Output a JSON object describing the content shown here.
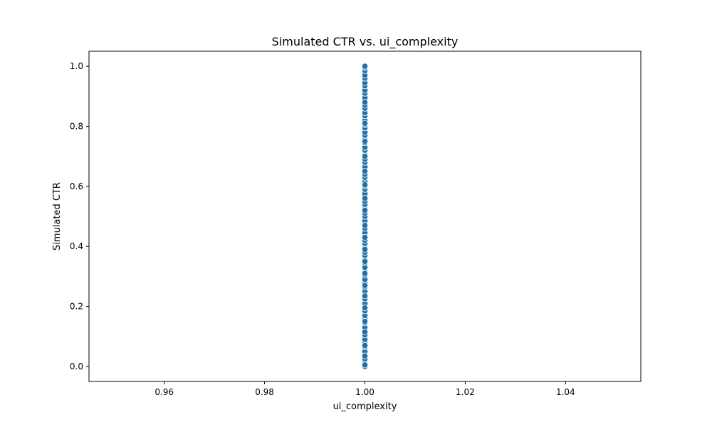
{
  "chart_data": {
    "type": "scatter",
    "title": "Simulated CTR vs. ui_complexity",
    "xlabel": "ui_complexity",
    "ylabel": "Simulated CTR",
    "xlim": [
      0.945,
      1.055
    ],
    "ylim": [
      -0.05,
      1.05
    ],
    "xticks": [
      "0.96",
      "0.98",
      "1.00",
      "1.02",
      "1.04"
    ],
    "yticks": [
      "0.0",
      "0.2",
      "0.4",
      "0.6",
      "0.8",
      "1.0"
    ],
    "grid": false,
    "marker_color": "#1f6fa8",
    "marker_edge_color": "#ffffff",
    "series": [
      {
        "x": [
          1.0,
          1.0,
          1.0,
          1.0,
          1.0,
          1.0,
          1.0,
          1.0,
          1.0,
          1.0,
          1.0,
          1.0,
          1.0,
          1.0,
          1.0,
          1.0,
          1.0,
          1.0,
          1.0,
          1.0,
          1.0,
          1.0,
          1.0,
          1.0,
          1.0,
          1.0,
          1.0,
          1.0,
          1.0,
          1.0,
          1.0,
          1.0,
          1.0,
          1.0,
          1.0,
          1.0,
          1.0,
          1.0,
          1.0,
          1.0,
          1.0,
          1.0,
          1.0,
          1.0,
          1.0,
          1.0,
          1.0,
          1.0,
          1.0,
          1.0,
          1.0,
          1.0,
          1.0,
          1.0,
          1.0,
          1.0,
          1.0,
          1.0,
          1.0,
          1.0,
          1.0,
          1.0,
          1.0,
          1.0,
          1.0,
          1.0,
          1.0,
          1.0,
          1.0,
          1.0,
          1.0,
          1.0,
          1.0,
          1.0,
          1.0,
          1.0,
          1.0,
          1.0,
          1.0,
          1.0,
          1.0,
          1.0,
          1.0,
          1.0,
          1.0,
          1.0,
          1.0,
          1.0,
          1.0,
          1.0,
          1.0,
          1.0,
          1.0,
          1.0,
          1.0,
          1.0,
          1.0,
          1.0,
          1.0,
          1.0
        ],
        "y": [
          0.0,
          0.01,
          0.025,
          0.04,
          0.05,
          0.065,
          0.08,
          0.09,
          0.105,
          0.12,
          0.13,
          0.145,
          0.16,
          0.17,
          0.185,
          0.2,
          0.21,
          0.225,
          0.24,
          0.25,
          0.265,
          0.28,
          0.29,
          0.305,
          0.315,
          0.33,
          0.345,
          0.355,
          0.37,
          0.38,
          0.395,
          0.41,
          0.42,
          0.435,
          0.445,
          0.46,
          0.475,
          0.485,
          0.5,
          0.51,
          0.525,
          0.54,
          0.55,
          0.565,
          0.575,
          0.59,
          0.6,
          0.615,
          0.63,
          0.64,
          0.655,
          0.665,
          0.68,
          0.69,
          0.705,
          0.72,
          0.73,
          0.745,
          0.755,
          0.77,
          0.78,
          0.795,
          0.805,
          0.82,
          0.835,
          0.845,
          0.86,
          0.87,
          0.885,
          0.895,
          0.91,
          0.92,
          0.935,
          0.945,
          0.96,
          0.97,
          0.985,
          0.995,
          1.0,
          0.005,
          0.035,
          0.07,
          0.115,
          0.15,
          0.195,
          0.235,
          0.27,
          0.31,
          0.35,
          0.39,
          0.43,
          0.47,
          0.52,
          0.56,
          0.605,
          0.65,
          0.7,
          0.75,
          0.81,
          0.88
        ]
      }
    ]
  }
}
